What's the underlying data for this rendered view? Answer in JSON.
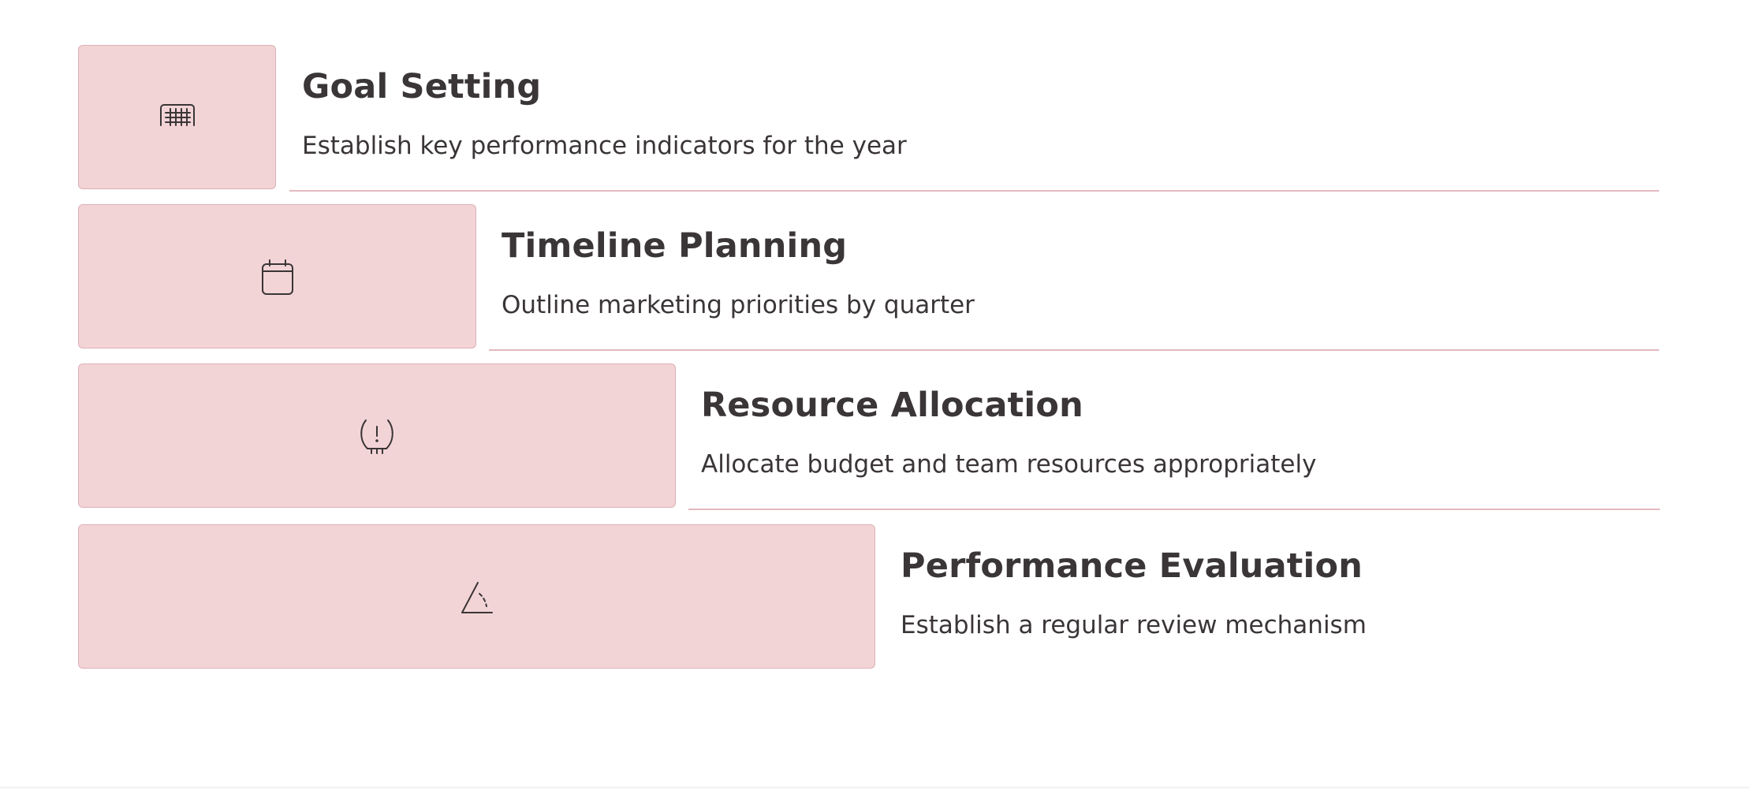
{
  "steps": [
    {
      "title": "Goal Setting",
      "description": "Establish key performance indicators for the year",
      "icon": "grid-icon"
    },
    {
      "title": "Timeline Planning",
      "description": "Outline marketing priorities by quarter",
      "icon": "calendar-icon"
    },
    {
      "title": "Resource Allocation",
      "description": "Allocate budget and team resources appropriately",
      "icon": "alert-gauge-icon"
    },
    {
      "title": "Performance Evaluation",
      "description": "Establish a regular review mechanism",
      "icon": "angle-icon"
    }
  ],
  "colors": {
    "block_fill": "#f2d4d7",
    "block_border": "#ddb1b6",
    "text": "#3a3536",
    "divider": "#e3b9bf"
  }
}
